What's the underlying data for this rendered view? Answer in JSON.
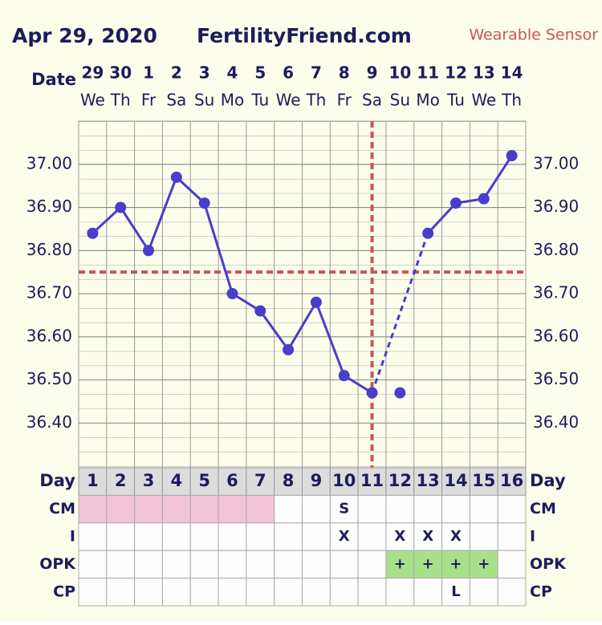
{
  "header": {
    "date": "Apr 29, 2020",
    "site": "FertilityFriend.com",
    "sensor": "Wearable Sensor"
  },
  "date_label": "Date",
  "dates": [
    "29",
    "30",
    "1",
    "2",
    "3",
    "4",
    "5",
    "6",
    "7",
    "8",
    "9",
    "10",
    "11",
    "12",
    "13",
    "14"
  ],
  "weekdays": [
    "We",
    "Th",
    "Fr",
    "Sa",
    "Su",
    "Mo",
    "Tu",
    "We",
    "Th",
    "Fr",
    "Sa",
    "Su",
    "Mo",
    "Tu",
    "We",
    "Th"
  ],
  "chart_data": {
    "type": "line",
    "x": [
      1,
      2,
      3,
      4,
      5,
      6,
      7,
      8,
      9,
      10,
      11,
      12,
      13,
      14,
      15,
      16
    ],
    "values": [
      36.84,
      36.9,
      36.8,
      36.97,
      36.91,
      36.7,
      36.66,
      36.57,
      36.68,
      36.51,
      36.47,
      36.47,
      36.84,
      36.91,
      36.92,
      37.02
    ],
    "excluded": [
      false,
      false,
      false,
      false,
      false,
      false,
      false,
      false,
      false,
      false,
      false,
      true,
      false,
      false,
      false,
      false
    ],
    "color": "#4a3ccc",
    "xlim": [
      0.5,
      16.5
    ],
    "ylim": [
      36.3,
      37.1
    ],
    "yticks": [
      {
        "value": 36.4,
        "label": "36.40"
      },
      {
        "value": 36.5,
        "label": "36.50"
      },
      {
        "value": 36.6,
        "label": "36.60"
      },
      {
        "value": 36.7,
        "label": "36.70"
      },
      {
        "value": 36.8,
        "label": "36.80"
      },
      {
        "value": 36.9,
        "label": "36.90"
      },
      {
        "value": 37.0,
        "label": "37.00"
      }
    ],
    "coverline": 36.75,
    "ovulation_day": 11,
    "marker_color": "#c85555",
    "grid": true
  },
  "table": {
    "day_label": "Day",
    "days": [
      1,
      2,
      3,
      4,
      5,
      6,
      7,
      8,
      9,
      10,
      11,
      12,
      13,
      14,
      15,
      16
    ],
    "rows": [
      {
        "label": "CM",
        "cells": [
          null,
          null,
          null,
          null,
          null,
          null,
          null,
          null,
          null,
          "S",
          null,
          null,
          null,
          null,
          null,
          null
        ],
        "fills": [
          "#f2c4d8",
          "#f2c4d8",
          "#f2c4d8",
          "#f2c4d8",
          "#f2c4d8",
          "#f2c4d8",
          "#f2c4d8",
          null,
          null,
          null,
          null,
          null,
          null,
          null,
          null,
          null
        ]
      },
      {
        "label": "I",
        "cells": [
          null,
          null,
          null,
          null,
          null,
          null,
          null,
          null,
          null,
          "X",
          null,
          "X",
          "X",
          "X",
          null,
          null
        ],
        "fills": [
          null,
          null,
          null,
          null,
          null,
          null,
          null,
          null,
          null,
          null,
          null,
          null,
          null,
          null,
          null,
          null
        ]
      },
      {
        "label": "OPK",
        "cells": [
          null,
          null,
          null,
          null,
          null,
          null,
          null,
          null,
          null,
          null,
          null,
          "+",
          "+",
          "+",
          "+",
          null
        ],
        "fills": [
          null,
          null,
          null,
          null,
          null,
          null,
          null,
          null,
          null,
          null,
          null,
          "#a8e08a",
          "#a8e08a",
          "#a8e08a",
          "#a8e08a",
          null
        ]
      },
      {
        "label": "CP",
        "cells": [
          null,
          null,
          null,
          null,
          null,
          null,
          null,
          null,
          null,
          null,
          null,
          null,
          null,
          "L",
          null,
          null
        ],
        "fills": [
          null,
          null,
          null,
          null,
          null,
          null,
          null,
          null,
          null,
          null,
          null,
          null,
          null,
          null,
          null,
          null
        ]
      }
    ]
  }
}
